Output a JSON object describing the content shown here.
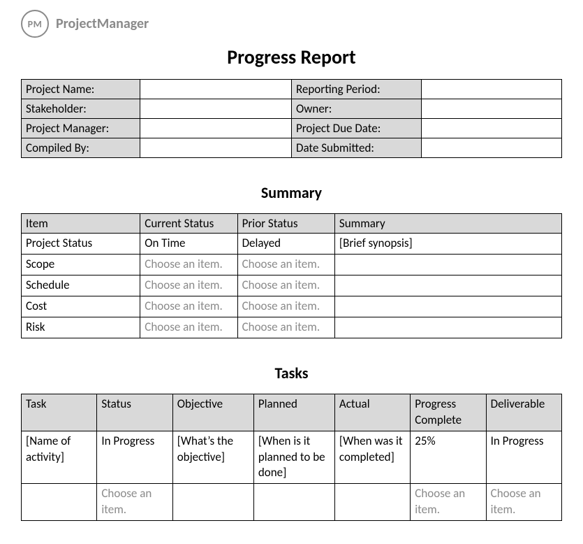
{
  "brand": {
    "logo_initials": "PM",
    "name": "ProjectManager"
  },
  "title": "Progress Report",
  "colors": {
    "background": "#ffffff",
    "text": "#000000",
    "placeholder": "#8a8a8a",
    "table_border": "#000000",
    "header_shade": "#d9d9d9",
    "logo_gray": "#8a8a8a"
  },
  "typography": {
    "title_fontsize": 28,
    "section_fontsize": 22,
    "cell_fontsize": 17,
    "font_family": "Calibri"
  },
  "meta": {
    "labels": {
      "project_name": "Project Name:",
      "reporting_period": "Reporting Period:",
      "stakeholder": "Stakeholder:",
      "owner": "Owner:",
      "project_manager": "Project Manager:",
      "project_due_date": "Project Due Date:",
      "compiled_by": "Compiled By:",
      "date_submitted": "Date Submitted:"
    },
    "values": {
      "project_name": "",
      "reporting_period": "",
      "stakeholder": "",
      "owner": "",
      "project_manager": "",
      "project_due_date": "",
      "compiled_by": "",
      "date_submitted": ""
    },
    "layout": {
      "col_widths_pct": [
        22,
        28,
        24,
        26
      ]
    }
  },
  "summary": {
    "heading": "Summary",
    "columns": [
      "Item",
      "Current Status",
      "Prior Status",
      "Summary"
    ],
    "col_widths_pct": [
      22,
      18,
      18,
      42
    ],
    "rows": [
      {
        "item": "Project Status",
        "current": "On Time",
        "current_placeholder": false,
        "prior": "Delayed",
        "prior_placeholder": false,
        "summary": "[Brief synopsis]"
      },
      {
        "item": "Scope",
        "current": "Choose an item.",
        "current_placeholder": true,
        "prior": "Choose an item.",
        "prior_placeholder": true,
        "summary": ""
      },
      {
        "item": "Schedule",
        "current": "Choose an item.",
        "current_placeholder": true,
        "prior": "Choose an item.",
        "prior_placeholder": true,
        "summary": ""
      },
      {
        "item": "Cost",
        "current": "Choose an item.",
        "current_placeholder": true,
        "prior": "Choose an item.",
        "prior_placeholder": true,
        "summary": ""
      },
      {
        "item": "Risk",
        "current": "Choose an item.",
        "current_placeholder": true,
        "prior": "Choose an item.",
        "prior_placeholder": true,
        "summary": ""
      }
    ]
  },
  "tasks": {
    "heading": "Tasks",
    "columns": [
      "Task",
      "Status",
      "Objective",
      "Planned",
      "Actual",
      "Progress Complete",
      "Deliverable"
    ],
    "col_widths_pct": [
      14,
      14,
      15,
      15,
      14,
      14,
      14
    ],
    "rows": [
      {
        "task": "[Name of activity]",
        "status": "In Progress",
        "status_placeholder": false,
        "objective": "[What’s the objective]",
        "planned": "[When is it planned to be done]",
        "actual": "[When was it completed]",
        "progress": "25%",
        "progress_placeholder": false,
        "deliverable": "In Progress",
        "deliverable_placeholder": false
      },
      {
        "task": "",
        "status": "Choose an item.",
        "status_placeholder": true,
        "objective": "",
        "planned": "",
        "actual": "",
        "progress": "Choose an item.",
        "progress_placeholder": true,
        "deliverable": "Choose an item.",
        "deliverable_placeholder": true
      }
    ]
  }
}
